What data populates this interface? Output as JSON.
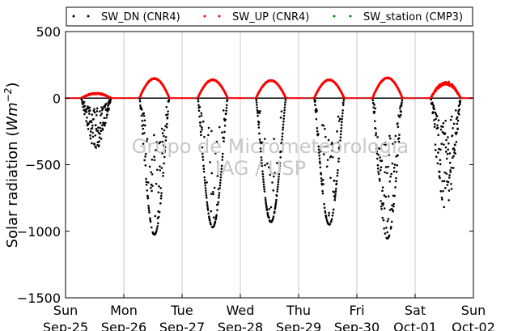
{
  "chart_data": {
    "type": "scatter",
    "title": "",
    "ylabel_prefix": "Solar radiation (",
    "ylabel_math": "Wm",
    "ylabel_exp": "−2",
    "ylabel_suffix": ")",
    "ylim": [
      -1500,
      500
    ],
    "yticks": [
      500,
      0,
      -500,
      -1000,
      -1500
    ],
    "ytick_labels": [
      "500",
      "0",
      "−500",
      "−1000",
      "−1500"
    ],
    "xlim": [
      "2016-09-25",
      "2016-10-02"
    ],
    "xticks": [
      {
        "weekday": "Sun",
        "date": "Sep-25"
      },
      {
        "weekday": "Mon",
        "date": "Sep-26"
      },
      {
        "weekday": "Tue",
        "date": "Sep-27"
      },
      {
        "weekday": "Wed",
        "date": "Sep-28"
      },
      {
        "weekday": "Thu",
        "date": "Sep-29"
      },
      {
        "weekday": "Fri",
        "date": "Sep-30"
      },
      {
        "weekday": "Sat",
        "date": "Oct-01"
      },
      {
        "weekday": "Sun",
        "date": "Oct-02"
      }
    ],
    "grid": "vertical",
    "legend_position": "top",
    "series": [
      {
        "name": "SW_DN (CNR4)",
        "color": "#000000",
        "marker": "dot"
      },
      {
        "name": "SW_UP (CNR4)",
        "color": "#ff0000",
        "marker": "dot"
      },
      {
        "name": "SW_station (CMP3)",
        "color": "#008000",
        "marker": "dot"
      }
    ],
    "daily_peaks": [
      {
        "day": "Sep-25",
        "sw_dn_min": -380,
        "sw_up_max": 40
      },
      {
        "day": "Sep-26",
        "sw_dn_min": -1025,
        "sw_up_max": 150
      },
      {
        "day": "Sep-27",
        "sw_dn_min": -970,
        "sw_up_max": 140
      },
      {
        "day": "Sep-28",
        "sw_dn_min": -930,
        "sw_up_max": 135
      },
      {
        "day": "Sep-29",
        "sw_dn_min": -950,
        "sw_up_max": 140
      },
      {
        "day": "Sep-30",
        "sw_dn_min": -1055,
        "sw_up_max": 155
      },
      {
        "day": "Oct-01",
        "sw_dn_min": -840,
        "sw_up_max": 130
      }
    ],
    "watermark": [
      "Grupo de Micrometeorologia",
      "IAG / USP"
    ]
  }
}
